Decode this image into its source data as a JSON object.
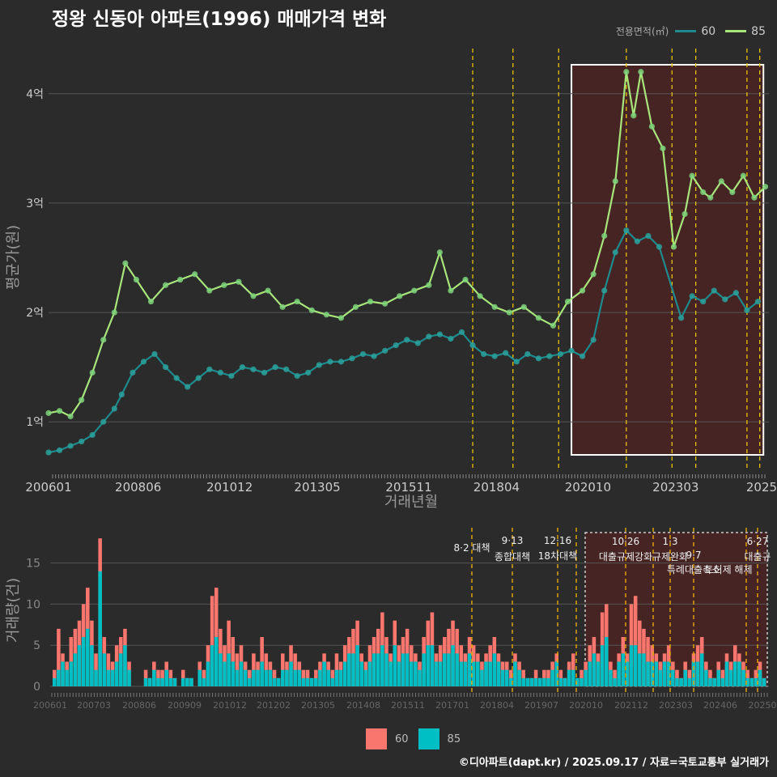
{
  "title": "정왕 신동아 아파트(1996) 매매가격 변화",
  "legend_title": "전용면적(㎡)",
  "credit": "©디아파트(dapt.kr) / 2025.09.17 / 자료=국토교통부 실거래가",
  "colors": {
    "s60_line": "#1f8a8e",
    "s60_dot": "#2aa19c",
    "s85_line": "#a8e67c",
    "s85_dot": "#7ed27a",
    "bar60": "#f8766d",
    "bar85": "#00bfc4",
    "policy": "#e6c200",
    "highlight": "#5c1f1f"
  },
  "chart_data": [
    {
      "type": "line",
      "ylabel": "평균가(원)",
      "xlabel": "거래년월",
      "x_ticks": [
        "200601",
        "200806",
        "201012",
        "201305",
        "201511",
        "201804",
        "202010",
        "202303",
        "2025"
      ],
      "y_ticks": [
        "1억",
        "2억",
        "3억",
        "4억"
      ],
      "ylim": [
        0.55,
        4.45
      ],
      "series": [
        {
          "name": "60",
          "points": [
            [
              2006.0,
              0.72
            ],
            [
              2006.3,
              0.74
            ],
            [
              2006.6,
              0.78
            ],
            [
              2006.9,
              0.82
            ],
            [
              2007.2,
              0.88
            ],
            [
              2007.5,
              1.0
            ],
            [
              2007.8,
              1.12
            ],
            [
              2008.0,
              1.25
            ],
            [
              2008.3,
              1.45
            ],
            [
              2008.6,
              1.55
            ],
            [
              2008.9,
              1.62
            ],
            [
              2009.2,
              1.5
            ],
            [
              2009.5,
              1.4
            ],
            [
              2009.8,
              1.32
            ],
            [
              2010.1,
              1.4
            ],
            [
              2010.4,
              1.48
            ],
            [
              2010.7,
              1.45
            ],
            [
              2011.0,
              1.42
            ],
            [
              2011.3,
              1.5
            ],
            [
              2011.6,
              1.48
            ],
            [
              2011.9,
              1.45
            ],
            [
              2012.2,
              1.5
            ],
            [
              2012.5,
              1.48
            ],
            [
              2012.8,
              1.42
            ],
            [
              2013.1,
              1.45
            ],
            [
              2013.4,
              1.52
            ],
            [
              2013.7,
              1.55
            ],
            [
              2014.0,
              1.55
            ],
            [
              2014.3,
              1.58
            ],
            [
              2014.6,
              1.62
            ],
            [
              2014.9,
              1.6
            ],
            [
              2015.2,
              1.65
            ],
            [
              2015.5,
              1.7
            ],
            [
              2015.8,
              1.75
            ],
            [
              2016.1,
              1.72
            ],
            [
              2016.4,
              1.78
            ],
            [
              2016.7,
              1.8
            ],
            [
              2017.0,
              1.76
            ],
            [
              2017.3,
              1.82
            ],
            [
              2017.6,
              1.7
            ],
            [
              2017.9,
              1.62
            ],
            [
              2018.2,
              1.6
            ],
            [
              2018.5,
              1.63
            ],
            [
              2018.8,
              1.55
            ],
            [
              2019.1,
              1.62
            ],
            [
              2019.4,
              1.58
            ],
            [
              2019.7,
              1.6
            ],
            [
              2020.0,
              1.62
            ],
            [
              2020.3,
              1.65
            ],
            [
              2020.6,
              1.6
            ],
            [
              2020.9,
              1.75
            ],
            [
              2021.2,
              2.2
            ],
            [
              2021.5,
              2.55
            ],
            [
              2021.8,
              2.75
            ],
            [
              2022.1,
              2.65
            ],
            [
              2022.4,
              2.7
            ],
            [
              2022.7,
              2.6
            ],
            [
              2023.3,
              1.95
            ],
            [
              2023.6,
              2.15
            ],
            [
              2023.9,
              2.1
            ],
            [
              2024.2,
              2.2
            ],
            [
              2024.5,
              2.12
            ],
            [
              2024.8,
              2.18
            ],
            [
              2025.1,
              2.02
            ],
            [
              2025.4,
              2.1
            ]
          ]
        },
        {
          "name": "85",
          "points": [
            [
              2006.0,
              1.08
            ],
            [
              2006.3,
              1.1
            ],
            [
              2006.6,
              1.05
            ],
            [
              2006.9,
              1.2
            ],
            [
              2007.2,
              1.45
            ],
            [
              2007.5,
              1.75
            ],
            [
              2007.8,
              2.0
            ],
            [
              2008.1,
              2.45
            ],
            [
              2008.4,
              2.3
            ],
            [
              2008.8,
              2.1
            ],
            [
              2009.2,
              2.25
            ],
            [
              2009.6,
              2.3
            ],
            [
              2010.0,
              2.35
            ],
            [
              2010.4,
              2.2
            ],
            [
              2010.8,
              2.25
            ],
            [
              2011.2,
              2.28
            ],
            [
              2011.6,
              2.15
            ],
            [
              2012.0,
              2.2
            ],
            [
              2012.4,
              2.05
            ],
            [
              2012.8,
              2.1
            ],
            [
              2013.2,
              2.02
            ],
            [
              2013.6,
              1.98
            ],
            [
              2014.0,
              1.95
            ],
            [
              2014.4,
              2.05
            ],
            [
              2014.8,
              2.1
            ],
            [
              2015.2,
              2.08
            ],
            [
              2015.6,
              2.15
            ],
            [
              2016.0,
              2.2
            ],
            [
              2016.4,
              2.25
            ],
            [
              2016.7,
              2.55
            ],
            [
              2017.0,
              2.2
            ],
            [
              2017.4,
              2.3
            ],
            [
              2017.8,
              2.15
            ],
            [
              2018.2,
              2.05
            ],
            [
              2018.6,
              2.0
            ],
            [
              2019.0,
              2.05
            ],
            [
              2019.4,
              1.95
            ],
            [
              2019.8,
              1.88
            ],
            [
              2020.2,
              2.1
            ],
            [
              2020.6,
              2.2
            ],
            [
              2020.9,
              2.35
            ],
            [
              2021.2,
              2.7
            ],
            [
              2021.5,
              3.2
            ],
            [
              2021.8,
              4.2
            ],
            [
              2022.0,
              3.8
            ],
            [
              2022.2,
              4.2
            ],
            [
              2022.5,
              3.7
            ],
            [
              2022.8,
              3.5
            ],
            [
              2023.1,
              2.6
            ],
            [
              2023.4,
              2.9
            ],
            [
              2023.6,
              3.25
            ],
            [
              2023.9,
              3.1
            ],
            [
              2024.1,
              3.05
            ],
            [
              2024.4,
              3.2
            ],
            [
              2024.7,
              3.1
            ],
            [
              2025.0,
              3.25
            ],
            [
              2025.3,
              3.05
            ],
            [
              2025.6,
              3.15
            ]
          ]
        }
      ],
      "policy_lines": [
        2017.6,
        2018.7,
        2019.95,
        2021.8,
        2023.05,
        2023.7,
        2025.1,
        2025.45
      ]
    },
    {
      "type": "bar",
      "ylabel": "거래량(건)",
      "x_ticks": [
        "200601",
        "200703",
        "200806",
        "200909",
        "201012",
        "201202",
        "201305",
        "201408",
        "201511",
        "201701",
        "201804",
        "201907",
        "202010",
        "202112",
        "202303",
        "202406",
        "20250"
      ],
      "y_ticks": [
        "0",
        "5",
        "10",
        "15"
      ],
      "ylim": [
        0,
        19
      ],
      "series": [
        {
          "name": "60",
          "values": [
            2,
            7,
            4,
            3,
            6,
            7,
            8,
            10,
            12,
            8,
            4,
            18,
            6,
            4,
            3,
            5,
            6,
            7,
            3,
            0,
            0,
            0,
            2,
            1,
            3,
            2,
            2,
            3,
            2,
            1,
            0,
            2,
            1,
            1,
            0,
            3,
            2,
            5,
            11,
            12,
            7,
            5,
            8,
            6,
            4,
            5,
            3,
            2,
            4,
            3,
            6,
            4,
            3,
            2,
            1,
            4,
            3,
            5,
            4,
            3,
            2,
            2,
            1,
            2,
            3,
            4,
            3,
            2,
            4,
            3,
            5,
            6,
            7,
            8,
            4,
            3,
            5,
            6,
            7,
            9,
            6,
            4,
            8,
            5,
            6,
            7,
            5,
            4,
            3,
            6,
            8,
            9,
            4,
            5,
            6,
            7,
            8,
            7,
            5,
            4,
            6,
            5,
            4,
            3,
            4,
            5,
            6,
            4,
            3,
            3,
            2,
            4,
            3,
            2,
            1,
            1,
            2,
            1,
            2,
            2,
            3,
            4,
            2,
            1,
            3,
            4,
            1,
            2,
            3,
            5,
            6,
            4,
            9,
            10,
            3,
            2,
            4,
            6,
            4,
            10,
            11,
            8,
            7,
            6,
            5,
            4,
            3,
            4,
            5,
            3,
            2,
            1,
            3,
            2,
            4,
            5,
            6,
            3,
            2,
            1,
            3,
            2,
            4,
            3,
            5,
            4,
            3,
            2,
            1,
            2,
            3,
            1
          ]
        },
        {
          "name": "85",
          "values": [
            1,
            2,
            3,
            2,
            3,
            4,
            5,
            6,
            7,
            5,
            2,
            14,
            4,
            2,
            2,
            3,
            4,
            5,
            2,
            0,
            0,
            0,
            1,
            1,
            2,
            1,
            1,
            2,
            1,
            1,
            0,
            1,
            1,
            1,
            0,
            2,
            1,
            3,
            5,
            6,
            4,
            3,
            4,
            3,
            2,
            3,
            2,
            1,
            2,
            2,
            3,
            2,
            2,
            1,
            1,
            2,
            2,
            3,
            2,
            2,
            1,
            1,
            1,
            1,
            2,
            3,
            2,
            1,
            2,
            2,
            3,
            4,
            4,
            5,
            3,
            2,
            3,
            4,
            4,
            5,
            4,
            3,
            5,
            3,
            4,
            4,
            3,
            3,
            2,
            4,
            5,
            5,
            3,
            3,
            4,
            4,
            5,
            4,
            3,
            3,
            4,
            3,
            3,
            2,
            3,
            3,
            4,
            3,
            2,
            2,
            1,
            3,
            2,
            1,
            1,
            1,
            1,
            1,
            1,
            1,
            2,
            3,
            1,
            1,
            2,
            2,
            1,
            1,
            2,
            3,
            4,
            3,
            5,
            6,
            2,
            1,
            3,
            4,
            3,
            5,
            5,
            4,
            4,
            3,
            3,
            3,
            2,
            3,
            3,
            2,
            1,
            1,
            2,
            1,
            3,
            3,
            4,
            2,
            1,
            1,
            2,
            1,
            3,
            2,
            3,
            3,
            2,
            1,
            1,
            1,
            2,
            1
          ]
        }
      ],
      "annotations": [
        {
          "date": "8·2 대책",
          "label": ""
        },
        {
          "date": "9·13",
          "label": "종합대책"
        },
        {
          "date": "12·16",
          "label": "18차대책"
        },
        {
          "date": "10·26",
          "label": "대출규제강화"
        },
        {
          "date": "1·3",
          "label": "규제완화"
        },
        {
          "date": "9·7",
          "label": "특례대출축소"
        },
        {
          "date": "",
          "label": "토허제 해제"
        },
        {
          "date": "6·27",
          "label": "대출규"
        }
      ]
    }
  ],
  "legend_bottom": [
    "60",
    "85"
  ]
}
